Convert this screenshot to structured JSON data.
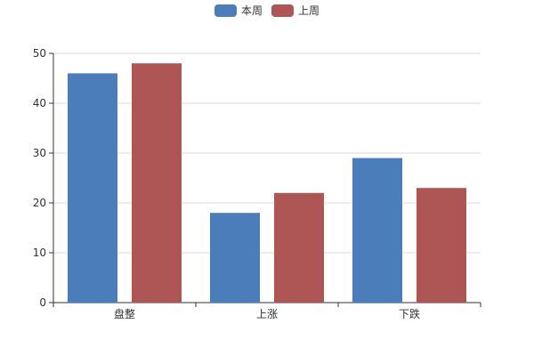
{
  "colors": {
    "series_1": "#4c7dbb",
    "series_2": "#ae5556",
    "axis": "#333333",
    "grid": "#d9d9d9"
  },
  "chart_data": {
    "type": "bar",
    "title": "",
    "xlabel": "",
    "ylabel": "",
    "categories": [
      "盘整",
      "上涨",
      "下跌"
    ],
    "series": [
      {
        "name": "本周",
        "values": [
          46,
          18,
          29
        ]
      },
      {
        "name": "上周",
        "values": [
          48,
          22,
          23
        ]
      }
    ],
    "ylim": [
      0,
      50
    ],
    "yticks": [
      0,
      10,
      20,
      30,
      40,
      50
    ],
    "grid": true,
    "legend_position": "top-center"
  }
}
